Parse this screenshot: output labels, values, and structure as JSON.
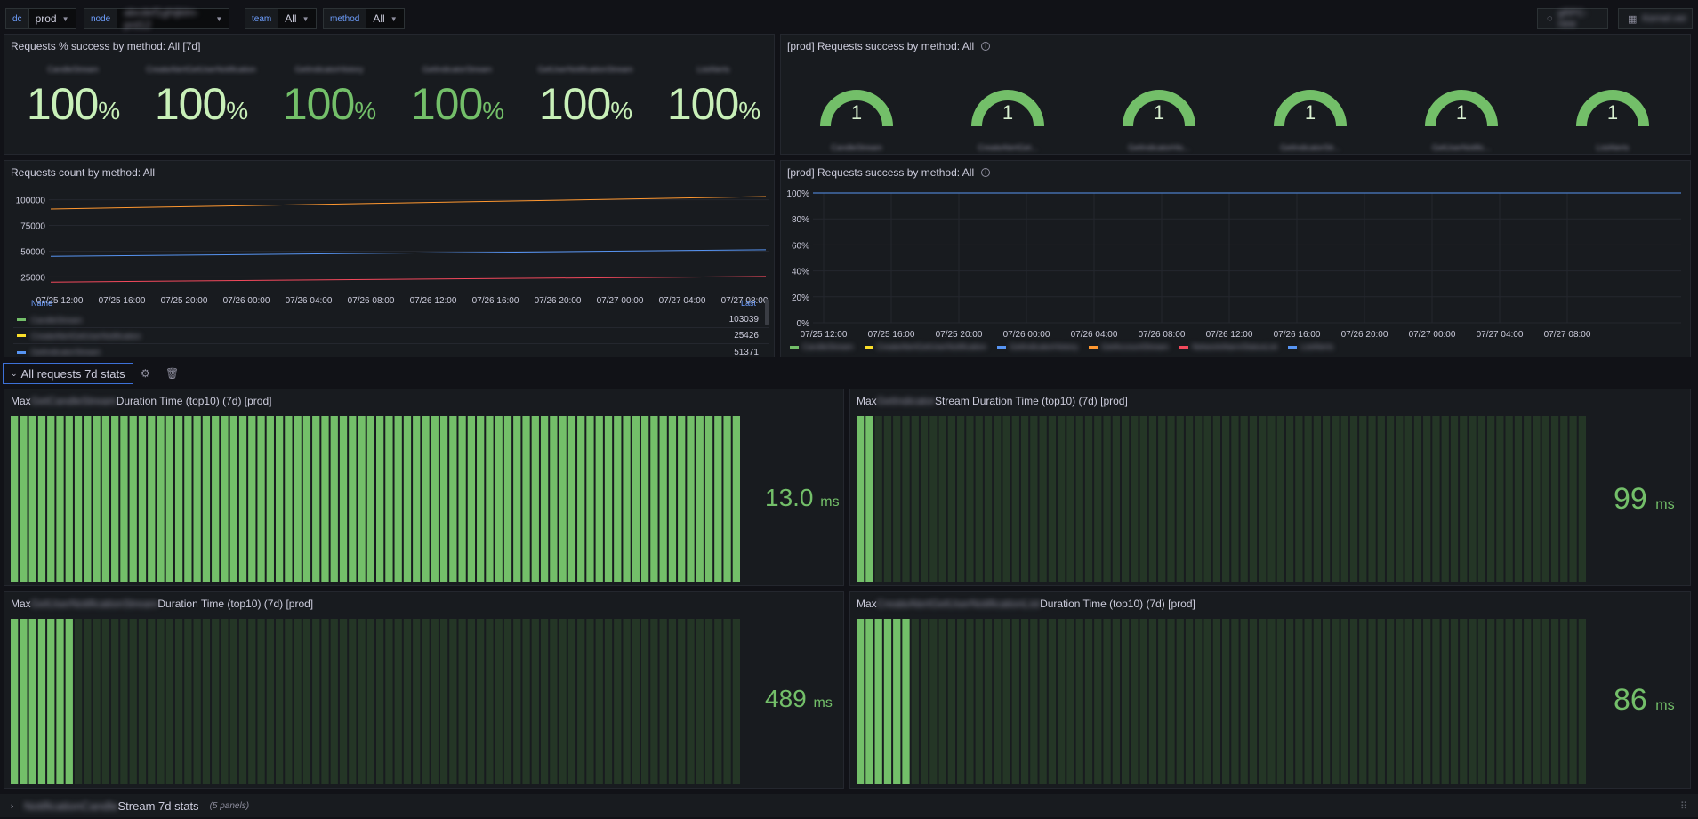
{
  "variables": [
    {
      "name": "dc",
      "value": "prod"
    },
    {
      "name": "node",
      "value": "abcdef1ghijklm-prd12"
    },
    {
      "name": "team",
      "value": "All"
    },
    {
      "name": "method",
      "value": "All"
    }
  ],
  "toolbar": {
    "btn1": "gRPC-new",
    "btn2": "Kernel.ver"
  },
  "panels": {
    "success_pct": {
      "title": "Requests % success by method: All [7d]",
      "stats": [
        {
          "name": "CandleStream",
          "value": "100",
          "unit": "%"
        },
        {
          "name": "CreateAlertGetUserNotification",
          "value": "100",
          "unit": "%"
        },
        {
          "name": "GetIndicatorHistory",
          "value": "100",
          "unit": "%"
        },
        {
          "name": "GetIndicatorStream",
          "value": "100",
          "unit": "%"
        },
        {
          "name": "GetUserNotificationStream",
          "value": "100",
          "unit": "%"
        },
        {
          "name": "ListAlerts",
          "value": "100",
          "unit": "%"
        }
      ]
    },
    "success_gauge": {
      "title": "[prod] Requests success by method: All",
      "gauges": [
        {
          "name": "CandleStream",
          "value": "1"
        },
        {
          "name": "CreateAlertGet...",
          "value": "1"
        },
        {
          "name": "GetIndicatorHis...",
          "value": "1"
        },
        {
          "name": "GetIndicatorStr...",
          "value": "1"
        },
        {
          "name": "GetUserNotific...",
          "value": "1"
        },
        {
          "name": "ListAlerts",
          "value": "1"
        }
      ]
    },
    "count": {
      "title": "Requests count by method: All",
      "legend_header_name": "Name",
      "legend_header_last": "Last *",
      "legend": [
        {
          "name": "CandleStream",
          "last": "103039",
          "color": "#73bf69"
        },
        {
          "name": "CreateAlertGetUserNotification",
          "last": "25426",
          "color": "#fade2a"
        },
        {
          "name": "GetIndicatorStream",
          "last": "51371",
          "color": "#5794f2"
        }
      ]
    },
    "success_ts": {
      "title": "[prod] Requests success by method: All",
      "legend": [
        {
          "name": "CandleStream",
          "color": "#73bf69"
        },
        {
          "name": "CreateAlertGetUserNotification",
          "color": "#fade2a"
        },
        {
          "name": "GetIndicatorHistory",
          "color": "#5794f2"
        },
        {
          "name": "GetAccountStream",
          "color": "#ff9830"
        },
        {
          "name": "NetworkAlarmStatusList",
          "color": "#f2495c"
        },
        {
          "name": "ListAlerts",
          "color": "#5794f2"
        }
      ]
    }
  },
  "row": {
    "title": "All requests 7d stats"
  },
  "bar_panels": [
    {
      "pre": "Max ",
      "blur": "GetCandleStream",
      "post": " Duration Time (top10) (7d) [prod]",
      "value": "13.0",
      "unit": "ms",
      "fill": 1.0
    },
    {
      "pre": "Max ",
      "blur": "GetIndicator",
      "post": "Stream Duration Time (top10) (7d) [prod]",
      "value": "99",
      "unit": "ms",
      "fill": 0.02
    },
    {
      "pre": "Max ",
      "blur": "GetUserNotificationStream",
      "post": " Duration Time (top10) (7d) [prod]",
      "value": "489",
      "unit": "ms",
      "fill": 0.09
    },
    {
      "pre": "Max ",
      "blur": "CreateAlertGetUserNotificationList",
      "post": " Duration Time (top10) (7d) [prod]",
      "value": "86",
      "unit": "ms",
      "fill": 0.07
    }
  ],
  "bottom_row": {
    "blur": "NotificationCandle",
    "title": "Stream 7d stats",
    "count": "(5 panels)"
  },
  "chart_data": [
    {
      "type": "line",
      "title": "Requests count by method: All",
      "x": [
        "07/25 12:00",
        "07/25 16:00",
        "07/25 20:00",
        "07/26 00:00",
        "07/26 04:00",
        "07/26 08:00",
        "07/26 12:00",
        "07/26 16:00",
        "07/26 20:00",
        "07/27 00:00",
        "07/27 04:00",
        "07/27 08:00"
      ],
      "y_ticks": [
        "100000",
        "75000",
        "50000",
        "25000"
      ],
      "ylim": [
        15000,
        110000
      ],
      "series": [
        {
          "name": "CandleStream",
          "color": "#ff9830",
          "start": 91000,
          "end": 103039
        },
        {
          "name": "GetIndicatorStream",
          "color": "#5794f2",
          "start": 45000,
          "end": 51371
        },
        {
          "name": "CreateAlertGetUserNotification",
          "color": "#f2495c",
          "start": 20000,
          "end": 25426
        }
      ]
    },
    {
      "type": "line",
      "title": "[prod] Requests success by method: All",
      "x": [
        "07/25 12:00",
        "07/25 16:00",
        "07/25 20:00",
        "07/26 00:00",
        "07/26 04:00",
        "07/26 08:00",
        "07/26 12:00",
        "07/26 16:00",
        "07/26 20:00",
        "07/27 00:00",
        "07/27 04:00",
        "07/27 08:00"
      ],
      "y_ticks": [
        "100%",
        "80%",
        "60%",
        "40%",
        "20%",
        "0%"
      ],
      "ylim": [
        0,
        100
      ],
      "series": [
        {
          "color": "#5794f2",
          "value": 100
        }
      ]
    }
  ]
}
